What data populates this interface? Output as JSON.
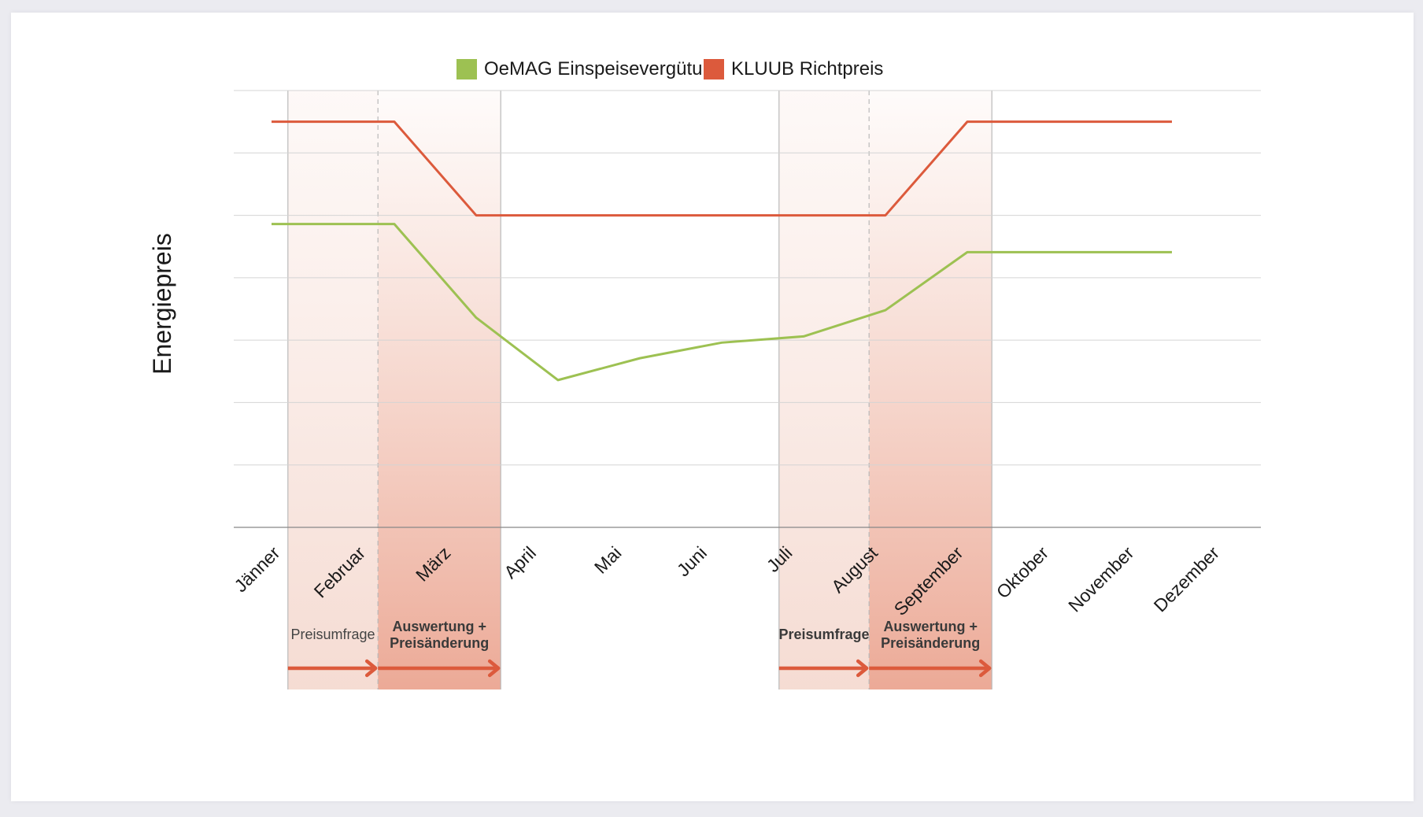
{
  "chart_data": {
    "type": "line",
    "title": "",
    "xlabel": "",
    "ylabel": "Energiepreis",
    "categories": [
      "Jänner",
      "Februar",
      "März",
      "April",
      "Mai",
      "Juni",
      "Juli",
      "August",
      "September",
      "Oktober",
      "November",
      "Dezember"
    ],
    "x": [
      0,
      1,
      1.5,
      2.5,
      3.5,
      4.5,
      5.5,
      6.5,
      7.5,
      8.5,
      10,
      11
    ],
    "ylim": [
      0,
      7
    ],
    "grid": true,
    "legend_position": "top",
    "series": [
      {
        "name": "OeMAG Einspeisevergütung",
        "color": "#9dc152",
        "x": [
          0,
          1.5,
          2.5,
          3.5,
          4.5,
          5.5,
          6.5,
          7.5,
          8.5,
          10,
          11
        ],
        "values": [
          4.86,
          4.86,
          3.36,
          2.36,
          2.71,
          2.96,
          3.06,
          3.48,
          4.41,
          4.41,
          4.41
        ]
      },
      {
        "name": "KLUUB Richtpreis",
        "color": "#dc5a3c",
        "x": [
          0,
          1.5,
          2.5,
          7.5,
          8.5,
          10,
          11
        ],
        "values": [
          6.5,
          6.5,
          5.0,
          5.0,
          6.5,
          6.5,
          6.5
        ]
      }
    ],
    "phases": [
      {
        "label": "Preisumfrage",
        "bold": false,
        "from": 0.2,
        "to": 1.3
      },
      {
        "label": "Auswertung +",
        "label2": "Preisänderung",
        "bold": true,
        "from": 1.3,
        "to": 2.8
      },
      {
        "label": "Preisumfrage",
        "bold": true,
        "from": 6.2,
        "to": 7.3
      },
      {
        "label": "Auswertung +",
        "label2": "Preisänderung",
        "bold": true,
        "from": 7.3,
        "to": 8.8
      }
    ]
  }
}
